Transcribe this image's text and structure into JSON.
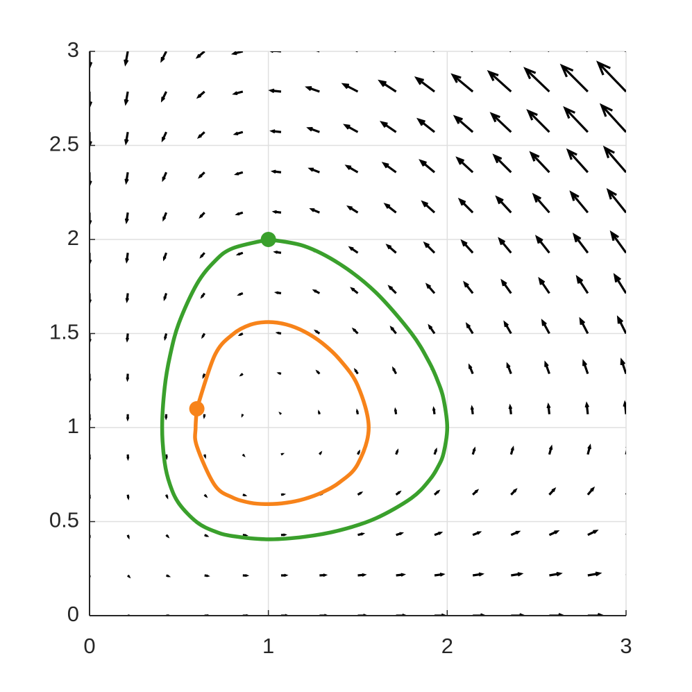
{
  "chart_data": {
    "type": "quiver",
    "xlim": [
      0,
      3
    ],
    "ylim": [
      0,
      3
    ],
    "xticks": [
      0,
      1,
      2,
      3
    ],
    "yticks": [
      0,
      0.5,
      1,
      1.5,
      2,
      2.5,
      3
    ],
    "grid": true,
    "arrow_color": "#000000",
    "grid_x": [
      0,
      0.214,
      0.429,
      0.643,
      0.857,
      1.071,
      1.286,
      1.5,
      1.714,
      1.929,
      2.143,
      2.357,
      2.571,
      2.786,
      3
    ],
    "grid_y": [
      0,
      0.214,
      0.429,
      0.643,
      0.857,
      1.071,
      1.286,
      1.5,
      1.714,
      1.929,
      2.143,
      2.357,
      2.571,
      2.786,
      3
    ],
    "u": [
      [
        0,
        0.21,
        0.43,
        0.64,
        0.86,
        1.07,
        1.29,
        1.5,
        1.71,
        1.93,
        2.14,
        2.36,
        2.57,
        2.79,
        3
      ],
      [
        0,
        0.17,
        0.34,
        0.51,
        0.67,
        0.84,
        1.01,
        1.18,
        1.35,
        1.52,
        1.68,
        1.85,
        2.02,
        2.19,
        2.36
      ],
      [
        0,
        0.12,
        0.24,
        0.37,
        0.49,
        0.61,
        0.73,
        0.86,
        0.98,
        1.1,
        1.22,
        1.35,
        1.47,
        1.59,
        1.71
      ],
      [
        0,
        0.08,
        0.15,
        0.23,
        0.31,
        0.38,
        0.46,
        0.54,
        0.61,
        0.69,
        0.77,
        0.84,
        0.92,
        0.99,
        1.07
      ],
      [
        0,
        0.03,
        0.06,
        0.09,
        0.12,
        0.15,
        0.18,
        0.21,
        0.24,
        0.28,
        0.31,
        0.34,
        0.37,
        0.4,
        0.43
      ],
      [
        0,
        -0.02,
        -0.03,
        -0.05,
        -0.06,
        -0.08,
        -0.09,
        -0.11,
        -0.12,
        -0.14,
        -0.15,
        -0.17,
        -0.18,
        -0.2,
        -0.21
      ],
      [
        0,
        -0.06,
        -0.12,
        -0.18,
        -0.24,
        -0.31,
        -0.37,
        -0.43,
        -0.49,
        -0.55,
        -0.61,
        -0.67,
        -0.73,
        -0.8,
        -0.86
      ],
      [
        0,
        -0.11,
        -0.21,
        -0.32,
        -0.43,
        -0.54,
        -0.64,
        -0.75,
        -0.86,
        -0.96,
        -1.07,
        -1.18,
        -1.29,
        -1.39,
        -1.5
      ],
      [
        0,
        -0.15,
        -0.31,
        -0.46,
        -0.61,
        -0.77,
        -0.92,
        -1.07,
        -1.22,
        -1.38,
        -1.53,
        -1.68,
        -1.84,
        -1.99,
        -2.14
      ],
      [
        0,
        -0.2,
        -0.4,
        -0.6,
        -0.8,
        -0.99,
        -1.19,
        -1.39,
        -1.59,
        -1.79,
        -1.99,
        -2.19,
        -2.39,
        -2.59,
        -2.79
      ],
      [
        0,
        -0.24,
        -0.49,
        -0.73,
        -0.98,
        -1.22,
        -1.47,
        -1.71,
        -1.96,
        -2.2,
        -2.45,
        -2.69,
        -2.94,
        -3.18,
        -3.43
      ],
      [
        0,
        -0.29,
        -0.58,
        -0.87,
        -1.16,
        -1.45,
        -1.74,
        -2.04,
        -2.33,
        -2.62,
        -2.91,
        -3.2,
        -3.49,
        -3.78,
        -4.07
      ],
      [
        0,
        -0.34,
        -0.67,
        -1.01,
        -1.35,
        -1.68,
        -2.02,
        -2.36,
        -2.69,
        -3.03,
        -3.37,
        -3.7,
        -4.04,
        -4.38,
        -4.71
      ],
      [
        0,
        -0.38,
        -0.77,
        -1.15,
        -1.53,
        -1.91,
        -2.3,
        -2.68,
        -3.06,
        -3.44,
        -3.83,
        -4.21,
        -4.59,
        -4.97,
        -5.36
      ],
      [
        0,
        -0.43,
        -0.86,
        -1.29,
        -1.71,
        -2.14,
        -2.57,
        -3,
        -3.43,
        -3.86,
        -4.29,
        -4.71,
        -5.14,
        -5.57,
        -6
      ]
    ],
    "v": [
      [
        0,
        0,
        0,
        0,
        0,
        0,
        0,
        0,
        0,
        0,
        0,
        0,
        0,
        0,
        0
      ],
      [
        -0.21,
        -0.17,
        -0.12,
        -0.08,
        -0.03,
        0.02,
        0.06,
        0.11,
        0.15,
        0.2,
        0.24,
        0.29,
        0.34,
        0.38,
        0.43
      ],
      [
        -0.43,
        -0.34,
        -0.24,
        -0.15,
        -0.06,
        0.03,
        0.12,
        0.21,
        0.31,
        0.4,
        0.49,
        0.58,
        0.67,
        0.77,
        0.86
      ],
      [
        -0.64,
        -0.51,
        -0.37,
        -0.23,
        -0.09,
        0.05,
        0.18,
        0.32,
        0.46,
        0.6,
        0.73,
        0.87,
        1.01,
        1.15,
        1.29
      ],
      [
        -0.86,
        -0.67,
        -0.49,
        -0.31,
        -0.12,
        0.06,
        0.24,
        0.43,
        0.61,
        0.8,
        0.98,
        1.16,
        1.35,
        1.53,
        1.71
      ],
      [
        -1.07,
        -0.84,
        -0.61,
        -0.38,
        -0.15,
        0.08,
        0.31,
        0.54,
        0.77,
        0.99,
        1.22,
        1.45,
        1.68,
        1.91,
        2.14
      ],
      [
        -1.29,
        -1.01,
        -0.73,
        -0.46,
        -0.18,
        0.09,
        0.37,
        0.64,
        0.92,
        1.19,
        1.47,
        1.74,
        2.02,
        2.3,
        2.57
      ],
      [
        -1.5,
        -1.18,
        -0.86,
        -0.54,
        -0.21,
        0.11,
        0.43,
        0.75,
        1.07,
        1.39,
        1.71,
        2.04,
        2.36,
        2.68,
        3
      ],
      [
        -1.71,
        -1.35,
        -0.98,
        -0.61,
        -0.24,
        0.12,
        0.49,
        0.86,
        1.22,
        1.59,
        1.96,
        2.33,
        2.69,
        3.06,
        3.43
      ],
      [
        -1.93,
        -1.52,
        -1.1,
        -0.69,
        -0.28,
        0.14,
        0.55,
        0.96,
        1.38,
        1.79,
        2.2,
        2.62,
        3.03,
        3.44,
        3.86
      ],
      [
        -2.14,
        -1.68,
        -1.22,
        -0.77,
        -0.31,
        0.15,
        0.61,
        1.07,
        1.53,
        1.99,
        2.45,
        2.91,
        3.37,
        3.83,
        4.29
      ],
      [
        -2.36,
        -1.85,
        -1.35,
        -0.84,
        -0.34,
        0.17,
        0.67,
        1.18,
        1.68,
        2.19,
        2.69,
        3.2,
        3.7,
        4.21,
        4.71
      ],
      [
        -2.57,
        -2.02,
        -1.47,
        -0.92,
        -0.37,
        0.18,
        0.73,
        1.29,
        1.84,
        2.39,
        2.94,
        3.49,
        4.04,
        4.59,
        5.14
      ],
      [
        -2.79,
        -2.19,
        -1.59,
        -0.99,
        -0.4,
        0.2,
        0.8,
        1.39,
        1.99,
        2.59,
        3.18,
        3.78,
        4.38,
        4.97,
        5.57
      ],
      [
        -3,
        -2.36,
        -1.71,
        -1.07,
        -0.43,
        0.21,
        0.86,
        1.5,
        2.14,
        2.79,
        3.43,
        4.07,
        4.71,
        5.36,
        6
      ]
    ],
    "series": [
      {
        "color": "#3aa02c",
        "x": [
          1,
          0.8,
          0.7,
          0.6,
          0.5,
          0.45,
          0.42,
          0.406,
          0.42,
          0.45,
          0.5,
          0.6,
          0.7,
          0.8,
          1,
          1.2,
          1.4,
          1.6,
          1.8,
          1.9,
          1.95,
          1.98,
          2.0,
          1.98,
          1.95,
          1.9,
          1.8,
          1.6,
          1.4,
          1.2,
          1
        ],
        "y": [
          2,
          1.953,
          1.884,
          1.763,
          1.556,
          1.382,
          1.212,
          1,
          0.815,
          0.696,
          0.596,
          0.497,
          0.448,
          0.423,
          0.406,
          0.419,
          0.454,
          0.517,
          0.625,
          0.72,
          0.794,
          0.865,
          1,
          1.149,
          1.24,
          1.346,
          1.501,
          1.719,
          1.869,
          1.965,
          2
        ]
      },
      {
        "color": "#f7831a",
        "x": [
          0.6,
          0.593,
          0.6,
          0.7,
          0.8,
          0.9,
          1.0,
          1.1,
          1.2,
          1.3,
          1.4,
          1.5,
          1.561,
          1.5,
          1.4,
          1.3,
          1.2,
          1.1,
          1.0,
          0.9,
          0.8,
          0.7,
          0.6
        ],
        "y": [
          1.1,
          1,
          0.901,
          0.694,
          0.628,
          0.6,
          0.593,
          0.6,
          0.62,
          0.655,
          0.71,
          0.806,
          1,
          1.222,
          1.36,
          1.45,
          1.511,
          1.548,
          1.561,
          1.547,
          1.495,
          1.384,
          1.1
        ]
      }
    ]
  }
}
